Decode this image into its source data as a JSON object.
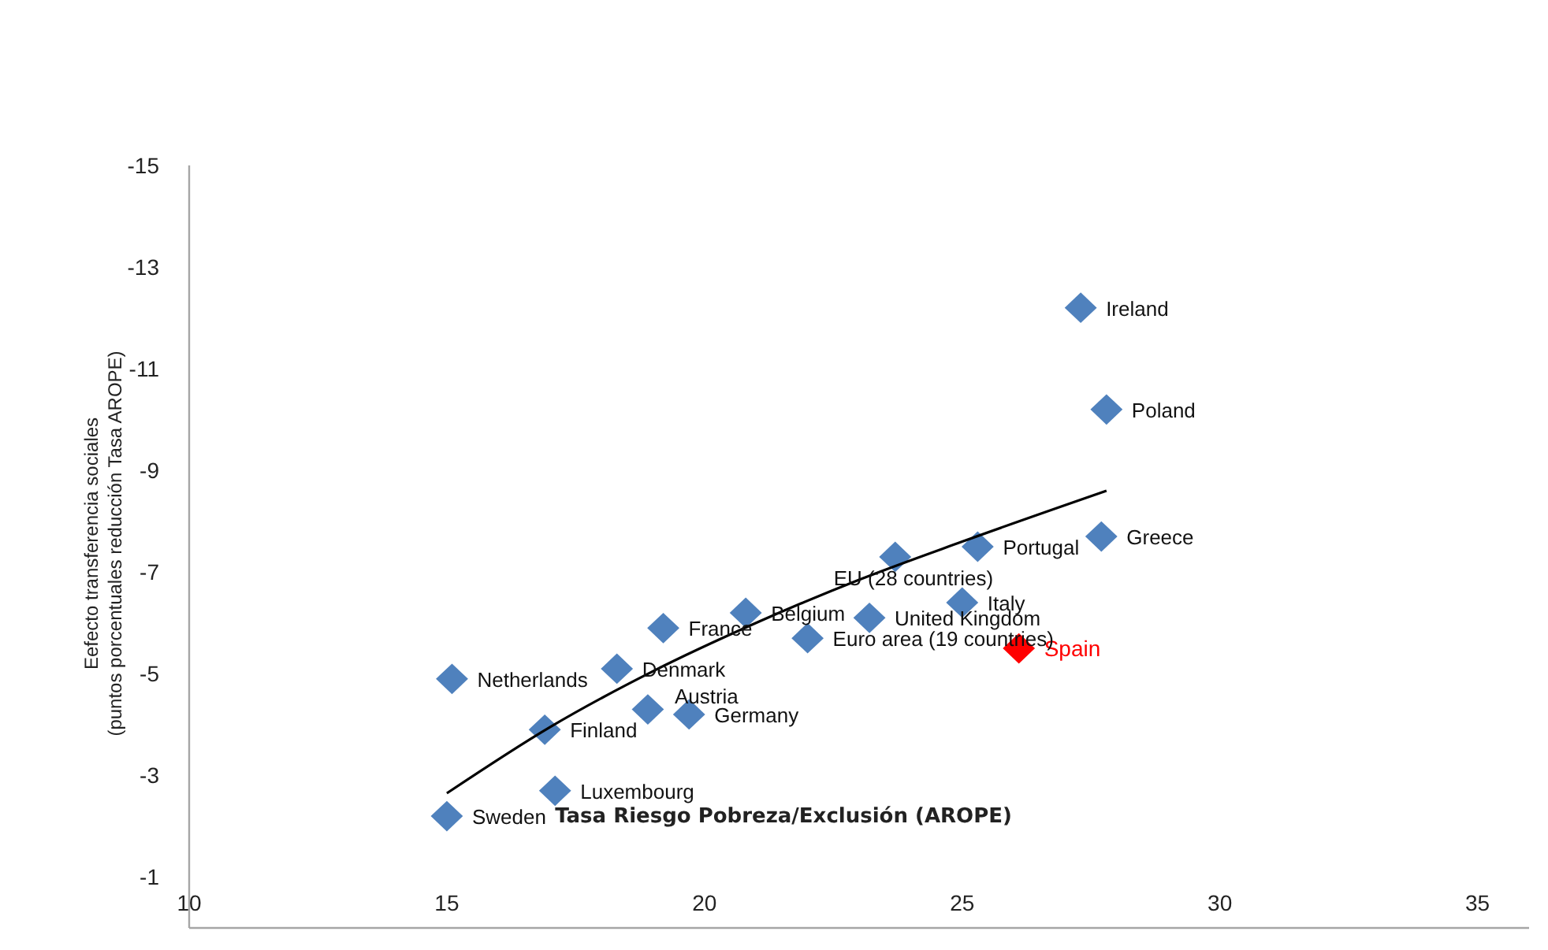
{
  "chart_data": {
    "type": "scatter",
    "xlabel": "Tasa Riesgo Pobreza/Exclusión  (AROPE)",
    "ylabel": "Eefecto transferencia sociales\n(puntos porcentuales reducción Tasa AROPE)",
    "xlim": [
      10,
      36
    ],
    "xticks": [
      10,
      15,
      20,
      25,
      30,
      35
    ],
    "ylim": [
      0,
      -15
    ],
    "yticks": [
      -15,
      -13,
      -11,
      -9,
      -7,
      -5,
      -3,
      -1
    ],
    "grid": false,
    "legend": false,
    "marker": "diamond",
    "series": [
      {
        "color": "#4f81bd",
        "x": [
          15.0,
          15.1,
          16.9,
          17.1,
          18.3,
          18.9,
          19.7,
          19.2,
          20.8,
          22.0,
          23.2,
          23.7,
          25.0,
          25.3,
          27.3,
          27.8,
          27.7
        ],
        "values": [
          -2.2,
          -4.9,
          -3.9,
          -2.7,
          -5.1,
          -4.3,
          -4.2,
          -5.9,
          -6.2,
          -5.7,
          -6.1,
          -7.3,
          -6.4,
          -7.5,
          -12.2,
          -10.2,
          -7.7
        ]
      },
      {
        "name": "Spain",
        "color": "#ff0000",
        "x": [
          26.1
        ],
        "values": [
          -5.5
        ]
      },
      {
        "type": "line",
        "color": "#000000",
        "marker": "none",
        "line_style": "solid",
        "x": [
          15.0,
          17,
          19,
          21,
          23,
          25,
          27.8
        ],
        "values": [
          -2.65,
          -3.95,
          -5.05,
          -6.0,
          -6.85,
          -7.6,
          -8.6
        ]
      }
    ],
    "annotations": [
      {
        "text": "Sweden",
        "x": 15.0,
        "y": -2.2
      },
      {
        "text": "Netherlands",
        "x": 15.1,
        "y": -4.9
      },
      {
        "text": "Finland",
        "x": 16.9,
        "y": -3.9
      },
      {
        "text": "Luxembourg",
        "x": 17.1,
        "y": -2.7
      },
      {
        "text": "Denmark",
        "x": 18.3,
        "y": -5.1
      },
      {
        "text": "Austria",
        "x": 18.9,
        "y": -4.3
      },
      {
        "text": "Germany",
        "x": 19.7,
        "y": -4.2
      },
      {
        "text": "France",
        "x": 19.2,
        "y": -5.9
      },
      {
        "text": "Belgium",
        "x": 20.8,
        "y": -6.2
      },
      {
        "text": "Euro area (19 countries)",
        "x": 22.0,
        "y": -5.7
      },
      {
        "text": "United Kingdom",
        "x": 23.2,
        "y": -6.1
      },
      {
        "text": "EU (28 countries)",
        "x": 23.7,
        "y": -7.3
      },
      {
        "text": "Italy",
        "x": 25.0,
        "y": -6.4
      },
      {
        "text": "Portugal",
        "x": 25.3,
        "y": -7.5
      },
      {
        "text": "Ireland",
        "x": 27.3,
        "y": -12.2
      },
      {
        "text": "Poland",
        "x": 27.8,
        "y": -10.2
      },
      {
        "text": "Greece",
        "x": 27.7,
        "y": -7.7
      }
    ]
  }
}
